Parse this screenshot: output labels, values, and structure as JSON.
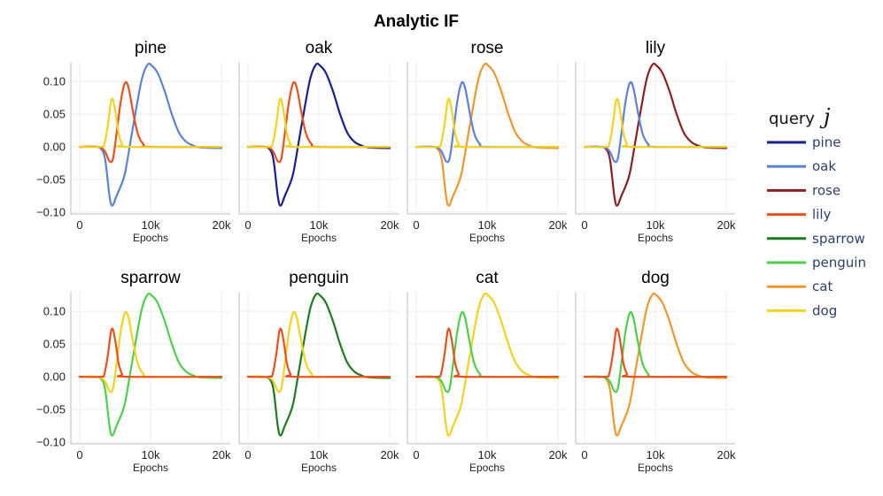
{
  "figure_title": "Analytic IF",
  "legend": {
    "title": "query",
    "title_symbol": "j",
    "items": [
      {
        "label": "pine",
        "color": "#1a1d8f"
      },
      {
        "label": "oak",
        "color": "#5b82d6"
      },
      {
        "label": "rose",
        "color": "#8b2020"
      },
      {
        "label": "lily",
        "color": "#e8501e"
      },
      {
        "label": "sparrow",
        "color": "#1f7a1f"
      },
      {
        "label": "penguin",
        "color": "#4ccf4c"
      },
      {
        "label": "cat",
        "color": "#f2962c"
      },
      {
        "label": "dog",
        "color": "#f2d21c"
      }
    ]
  },
  "chart_data": {
    "type": "line",
    "xlabel": "Epochs",
    "xlim": [
      0,
      20000
    ],
    "ylim": [
      -0.1,
      0.13
    ],
    "xticks": [
      0,
      10000,
      20000
    ],
    "xtick_labels": [
      "0",
      "10k",
      "20k"
    ],
    "yticks": [
      -0.1,
      -0.05,
      0.0,
      0.05,
      0.1
    ],
    "ytick_labels": [
      "−0.10",
      "−0.05",
      "0.00",
      "0.05",
      "0.10"
    ],
    "grid": true,
    "curve_shapes": {
      "self": [
        [
          0,
          0
        ],
        [
          2000,
          0
        ],
        [
          3000,
          -0.003
        ],
        [
          3600,
          -0.02
        ],
        [
          4200,
          -0.075
        ],
        [
          4600,
          -0.09
        ],
        [
          5200,
          -0.075
        ],
        [
          5800,
          -0.06
        ],
        [
          6400,
          -0.04
        ],
        [
          7200,
          0.01
        ],
        [
          8000,
          0.06
        ],
        [
          8800,
          0.105
        ],
        [
          9600,
          0.126
        ],
        [
          10200,
          0.124
        ],
        [
          11000,
          0.113
        ],
        [
          12000,
          0.085
        ],
        [
          13000,
          0.05
        ],
        [
          14000,
          0.022
        ],
        [
          15000,
          0.008
        ],
        [
          16000,
          0.002
        ],
        [
          17000,
          -0.001
        ],
        [
          20000,
          -0.002
        ]
      ],
      "sibling": [
        [
          0,
          0
        ],
        [
          2500,
          0
        ],
        [
          3500,
          -0.006
        ],
        [
          4200,
          -0.022
        ],
        [
          4700,
          -0.018
        ],
        [
          5200,
          0.02
        ],
        [
          5800,
          0.07
        ],
        [
          6400,
          0.098
        ],
        [
          6900,
          0.09
        ],
        [
          7500,
          0.055
        ],
        [
          8200,
          0.02
        ],
        [
          9000,
          0.004
        ],
        [
          10000,
          0
        ],
        [
          20000,
          0
        ]
      ],
      "other_pair": [
        [
          0,
          0
        ],
        [
          3000,
          0
        ],
        [
          3500,
          0.005
        ],
        [
          4000,
          0.035
        ],
        [
          4400,
          0.068
        ],
        [
          4700,
          0.072
        ],
        [
          5100,
          0.05
        ],
        [
          5500,
          0.02
        ],
        [
          6000,
          0.004
        ],
        [
          6500,
          0
        ],
        [
          20000,
          0
        ]
      ]
    },
    "panels": [
      {
        "title": "pine",
        "series": [
          {
            "name": "oak",
            "color": "#5b82d6",
            "shape": "self"
          },
          {
            "name": "lily",
            "color": "#e8501e",
            "shape": "sibling"
          },
          {
            "name": "dog",
            "color": "#f2d21c",
            "shape": "other_pair"
          }
        ]
      },
      {
        "title": "oak",
        "series": [
          {
            "name": "pine",
            "color": "#1a1d8f",
            "shape": "self"
          },
          {
            "name": "lily",
            "color": "#e8501e",
            "shape": "sibling"
          },
          {
            "name": "dog",
            "color": "#f2d21c",
            "shape": "other_pair"
          }
        ]
      },
      {
        "title": "rose",
        "series": [
          {
            "name": "cat",
            "color": "#f2962c",
            "shape": "self"
          },
          {
            "name": "oak",
            "color": "#5b82d6",
            "shape": "sibling"
          },
          {
            "name": "dog",
            "color": "#f2d21c",
            "shape": "other_pair"
          }
        ]
      },
      {
        "title": "lily",
        "series": [
          {
            "name": "rose",
            "color": "#8b2020",
            "shape": "self"
          },
          {
            "name": "oak",
            "color": "#5b82d6",
            "shape": "sibling"
          },
          {
            "name": "dog",
            "color": "#f2d21c",
            "shape": "other_pair"
          }
        ]
      },
      {
        "title": "sparrow",
        "series": [
          {
            "name": "penguin",
            "color": "#4ccf4c",
            "shape": "self"
          },
          {
            "name": "dog",
            "color": "#f2d21c",
            "shape": "sibling"
          },
          {
            "name": "lily",
            "color": "#e8501e",
            "shape": "other_pair"
          }
        ]
      },
      {
        "title": "penguin",
        "series": [
          {
            "name": "sparrow",
            "color": "#1f7a1f",
            "shape": "self"
          },
          {
            "name": "dog",
            "color": "#f2d21c",
            "shape": "sibling"
          },
          {
            "name": "lily",
            "color": "#e8501e",
            "shape": "other_pair"
          }
        ]
      },
      {
        "title": "cat",
        "series": [
          {
            "name": "dog",
            "color": "#f2d21c",
            "shape": "self"
          },
          {
            "name": "penguin",
            "color": "#4ccf4c",
            "shape": "sibling"
          },
          {
            "name": "lily",
            "color": "#e8501e",
            "shape": "other_pair"
          }
        ]
      },
      {
        "title": "dog",
        "series": [
          {
            "name": "cat",
            "color": "#f2962c",
            "shape": "self"
          },
          {
            "name": "penguin",
            "color": "#4ccf4c",
            "shape": "sibling"
          },
          {
            "name": "lily",
            "color": "#e8501e",
            "shape": "other_pair"
          }
        ]
      }
    ]
  }
}
